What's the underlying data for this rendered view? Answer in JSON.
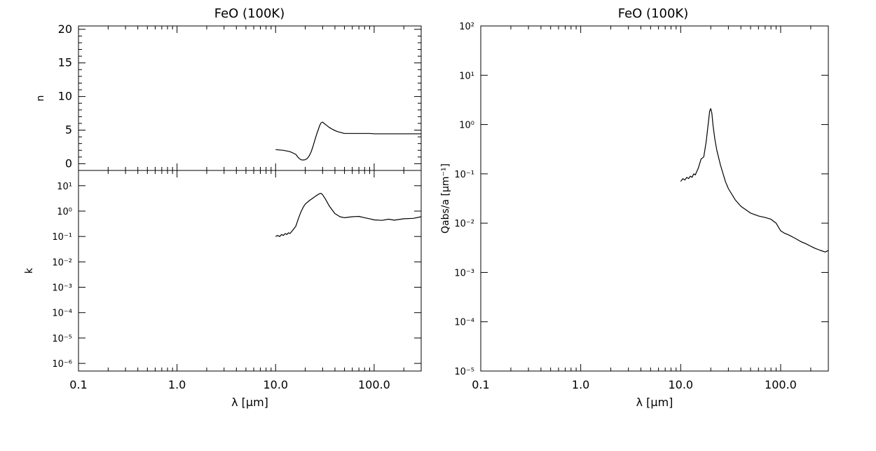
{
  "chart_data": [
    {
      "type": "line",
      "panel": "n",
      "title": "FeO (100K)",
      "xlabel": "",
      "ylabel": "n",
      "xscale": "log",
      "yscale": "linear",
      "xlim": [
        0.1,
        300
      ],
      "ylim": [
        -1,
        20.5
      ],
      "xticks": [
        0.1,
        1,
        10,
        100
      ],
      "xticklabels": [],
      "yticks": [
        0,
        5,
        10,
        15,
        20
      ],
      "yticklabels": [
        "0",
        "5",
        "10",
        "15",
        "20"
      ],
      "grid": false,
      "series": [
        {
          "x": [
            10,
            12,
            14,
            16,
            17,
            18,
            19,
            20,
            21,
            22,
            23,
            24,
            25,
            26,
            27,
            28,
            29,
            30,
            31,
            33,
            35,
            38,
            42,
            50,
            60,
            70,
            80,
            90,
            100,
            150,
            200,
            300
          ],
          "y": [
            2.1,
            2.0,
            1.8,
            1.4,
            0.9,
            0.6,
            0.55,
            0.6,
            0.8,
            1.2,
            1.8,
            2.6,
            3.5,
            4.3,
            5.0,
            5.7,
            6.1,
            6.2,
            6.0,
            5.7,
            5.4,
            5.1,
            4.8,
            4.5,
            4.5,
            4.5,
            4.5,
            4.5,
            4.45,
            4.45,
            4.45,
            4.45
          ]
        }
      ]
    },
    {
      "type": "line",
      "panel": "k",
      "title": "",
      "xlabel": "λ [μm]",
      "ylabel": "k",
      "xscale": "log",
      "yscale": "log",
      "xlim": [
        0.1,
        300
      ],
      "ylim": [
        5e-07,
        40
      ],
      "xticks": [
        0.1,
        1,
        10,
        100
      ],
      "xticklabels": [
        "0.1",
        "1.0",
        "10.0",
        "100.0"
      ],
      "yticks": [
        1e-06,
        1e-05,
        0.0001,
        0.001,
        0.01,
        0.1,
        1,
        10
      ],
      "yticklabels": [
        "10⁻⁶",
        "10⁻⁵",
        "10⁻⁴",
        "10⁻³",
        "10⁻²",
        "10⁻¹",
        "10⁰",
        "10¹"
      ],
      "grid": false,
      "series": [
        {
          "x": [
            10,
            10.5,
            11,
            11.5,
            12,
            12.5,
            13,
            13.5,
            14,
            15,
            16,
            17,
            18,
            19,
            20,
            22,
            24,
            26,
            28,
            29,
            30,
            32,
            35,
            40,
            45,
            50,
            60,
            70,
            80,
            90,
            100,
            120,
            140,
            160,
            200,
            250,
            300
          ],
          "y": [
            0.1,
            0.11,
            0.1,
            0.12,
            0.11,
            0.13,
            0.12,
            0.14,
            0.13,
            0.18,
            0.25,
            0.5,
            0.9,
            1.4,
            1.9,
            2.6,
            3.3,
            4.1,
            4.9,
            5.0,
            4.4,
            3.0,
            1.6,
            0.8,
            0.6,
            0.55,
            0.6,
            0.62,
            0.55,
            0.5,
            0.45,
            0.43,
            0.48,
            0.44,
            0.5,
            0.52,
            0.6
          ]
        }
      ]
    },
    {
      "type": "line",
      "panel": "Qabs/a",
      "title": "FeO (100K)",
      "xlabel": "λ [μm]",
      "ylabel": "Qabs/a [μm⁻¹]",
      "xscale": "log",
      "yscale": "log",
      "xlim": [
        0.1,
        300
      ],
      "ylim": [
        1e-05,
        100
      ],
      "xticks": [
        0.1,
        1,
        10,
        100
      ],
      "xticklabels": [
        "0.1",
        "1.0",
        "10.0",
        "100.0"
      ],
      "yticks": [
        1e-05,
        0.0001,
        0.001,
        0.01,
        0.1,
        1,
        10,
        100
      ],
      "yticklabels": [
        "10⁻⁵",
        "10⁻⁴",
        "10⁻³",
        "10⁻²",
        "10⁻¹",
        "10⁰",
        "10¹",
        "10²"
      ],
      "grid": false,
      "series": [
        {
          "x": [
            10,
            10.5,
            11,
            11.5,
            12,
            12.5,
            13,
            13.5,
            14,
            15,
            16,
            17,
            18,
            19,
            19.5,
            20,
            20.5,
            21,
            22,
            23,
            25,
            28,
            30,
            35,
            40,
            50,
            60,
            70,
            80,
            90,
            100,
            110,
            120,
            140,
            160,
            180,
            200,
            220,
            250,
            280,
            300
          ],
          "y": [
            0.07,
            0.08,
            0.075,
            0.085,
            0.08,
            0.09,
            0.085,
            0.1,
            0.095,
            0.13,
            0.2,
            0.22,
            0.45,
            1.2,
            1.9,
            2.1,
            1.7,
            1.0,
            0.5,
            0.3,
            0.15,
            0.07,
            0.05,
            0.03,
            0.022,
            0.016,
            0.014,
            0.013,
            0.012,
            0.01,
            0.007,
            0.0062,
            0.0058,
            0.0049,
            0.0042,
            0.0038,
            0.0034,
            0.0031,
            0.0028,
            0.0026,
            0.0028
          ]
        }
      ]
    }
  ]
}
